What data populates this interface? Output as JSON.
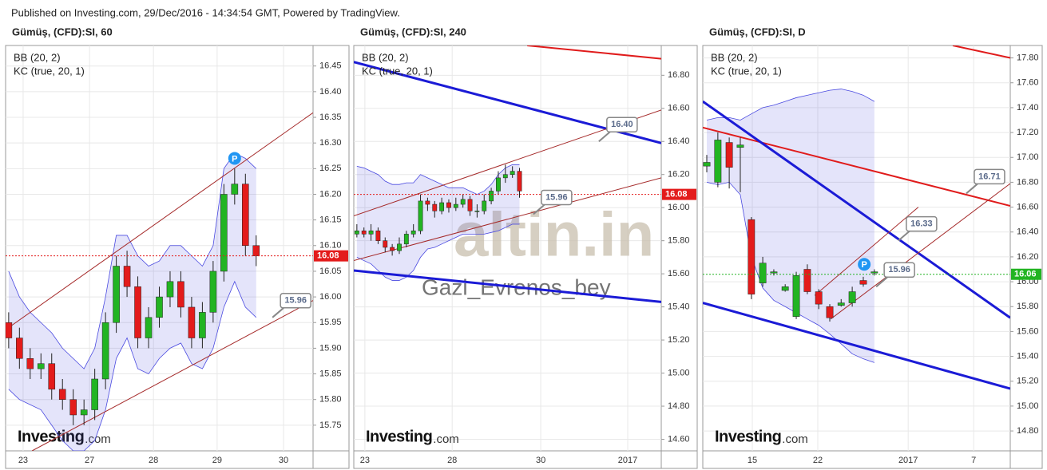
{
  "header": "Published on Investing.com, 29/Dec/2016 - 14:34:54 GMT, Powered by TradingView.",
  "chart_data": [
    {
      "type": "candlestick",
      "title": "Gümüş, (CFD):SI, 60",
      "indicators": [
        "BB (20, 2)",
        "KC (true, 20, 1)"
      ],
      "watermarks": [
        "Investing",
        ".com"
      ],
      "xlim": [
        0,
        100
      ],
      "ylim": [
        15.7,
        16.49
      ],
      "grid": true,
      "xticks": [
        {
          "value": 5.7,
          "label": "23"
        },
        {
          "value": 27.3,
          "label": "27"
        },
        {
          "value": 48.1,
          "label": "28"
        },
        {
          "value": 68.8,
          "label": "29"
        },
        {
          "value": 90.4,
          "label": "30"
        }
      ],
      "yticks": [
        15.75,
        {
          "value": 15.8,
          "label": "15.80"
        },
        15.85,
        {
          "value": 15.9,
          "label": "15.90"
        },
        15.95,
        {
          "value": 16,
          "label": "16.00"
        },
        16.05,
        {
          "value": 16.1,
          "label": "16.10"
        },
        16.15,
        {
          "value": 16.2,
          "label": "16.20"
        },
        16.25,
        {
          "value": 16.3,
          "label": "16.30"
        },
        16.35,
        {
          "value": 16.4,
          "label": "16.40"
        },
        16.45
      ],
      "up_color": "#22b422",
      "down_color": "#e31b1b",
      "band_color": "#4a4ae0",
      "x": [
        1,
        4.5,
        8,
        11.5,
        15,
        18.5,
        22,
        25.5,
        29,
        32.5,
        36,
        39.5,
        43,
        46.5,
        50,
        53.5,
        57,
        60.5,
        64,
        67.5,
        71,
        74.5,
        78,
        81.5
      ],
      "open": [
        15.95,
        15.92,
        15.88,
        15.86,
        15.87,
        15.82,
        15.8,
        15.77,
        15.78,
        15.84,
        15.95,
        16.06,
        16.02,
        15.92,
        15.96,
        16.0,
        16.03,
        15.98,
        15.92,
        15.97,
        16.05,
        16.2,
        16.22,
        16.1
      ],
      "high": [
        15.97,
        15.94,
        15.9,
        15.89,
        15.89,
        15.84,
        15.82,
        15.8,
        15.86,
        15.97,
        16.08,
        16.09,
        16.04,
        15.98,
        16.02,
        16.05,
        16.05,
        16.0,
        15.99,
        16.07,
        16.22,
        16.25,
        16.24,
        16.12
      ],
      "low": [
        15.9,
        15.86,
        15.84,
        15.84,
        15.8,
        15.78,
        15.75,
        15.75,
        15.76,
        15.82,
        15.93,
        16.0,
        15.9,
        15.9,
        15.94,
        15.98,
        15.96,
        15.9,
        15.9,
        15.95,
        16.03,
        16.18,
        16.08,
        16.06
      ],
      "close": [
        15.92,
        15.88,
        15.86,
        15.87,
        15.82,
        15.8,
        15.77,
        15.78,
        15.84,
        15.95,
        16.06,
        16.02,
        15.92,
        15.96,
        16.0,
        16.03,
        15.98,
        15.92,
        15.97,
        16.05,
        16.2,
        16.22,
        16.1,
        16.08
      ],
      "band_upper": [
        16.05,
        16.0,
        15.97,
        15.95,
        15.93,
        15.9,
        15.88,
        15.86,
        15.9,
        16.0,
        16.12,
        16.12,
        16.08,
        16.06,
        16.07,
        16.1,
        16.1,
        16.08,
        16.06,
        16.1,
        16.25,
        16.28,
        16.27,
        16.25
      ],
      "band_lower": [
        15.82,
        15.8,
        15.79,
        15.78,
        15.75,
        15.72,
        15.7,
        15.7,
        15.72,
        15.78,
        15.88,
        15.92,
        15.86,
        15.85,
        15.88,
        15.9,
        15.91,
        15.87,
        15.86,
        15.9,
        15.98,
        16.03,
        15.98,
        15.96
      ],
      "lines": [
        {
          "color": "#a52a2a",
          "width": 1,
          "x": [
            0,
            100
          ],
          "values": [
            15.936,
            16.359
          ]
        },
        {
          "color": "#a52a2a",
          "width": 1,
          "x": [
            8.6,
            100
          ],
          "values": [
            15.7,
            15.993
          ]
        }
      ],
      "price_line": {
        "value": 16.08,
        "color": "#e31b1b"
      },
      "callouts": [
        {
          "value": 15.96,
          "x": 86.8
        }
      ],
      "markers": [
        {
          "label": "P",
          "x": 74.5,
          "y": 16.27
        }
      ]
    },
    {
      "type": "candlestick",
      "title": "Gümüş, (CFD):SI, 240",
      "indicators": [
        "BB (20, 2)",
        "KC (true, 20, 1)"
      ],
      "watermarks": [
        "Investing",
        ".com",
        "altin.in",
        "Gazi_Evrenos_bey"
      ],
      "xlim": [
        0,
        100
      ],
      "ylim": [
        14.53,
        16.98
      ],
      "grid": true,
      "xticks": [
        {
          "value": 3.6,
          "label": "23"
        },
        {
          "value": 32,
          "label": "28"
        },
        {
          "value": 60.8,
          "label": "30"
        },
        {
          "value": 89.1,
          "label": "2017"
        }
      ],
      "yticks": [
        {
          "value": 14.6,
          "label": "14.60"
        },
        {
          "value": 14.8,
          "label": "14.80"
        },
        {
          "value": 15,
          "label": "15.00"
        },
        {
          "value": 15.2,
          "label": "15.20"
        },
        {
          "value": 15.4,
          "label": "15.40"
        },
        {
          "value": 15.6,
          "label": "15.60"
        },
        {
          "value": 15.8,
          "label": "15.80"
        },
        {
          "value": 16,
          "label": "16.00"
        },
        {
          "value": 16.2,
          "label": "16.20"
        },
        {
          "value": 16.4,
          "label": "16.40"
        },
        {
          "value": 16.6,
          "label": "16.60"
        },
        {
          "value": 16.8,
          "label": "16.80"
        }
      ],
      "up_color": "#22b422",
      "down_color": "#e31b1b",
      "band_color": "#4a4ae0",
      "x": [
        1,
        3.3,
        5.6,
        7.9,
        10.2,
        12.5,
        14.8,
        17.1,
        19.4,
        21.7,
        24,
        26.3,
        28.6,
        30.9,
        33.2,
        35.5,
        37.8,
        40.1,
        42.4,
        44.7,
        47,
        49.3,
        51.6,
        53.9
      ],
      "open": [
        15.84,
        15.86,
        15.84,
        15.86,
        15.8,
        15.76,
        15.74,
        15.78,
        15.84,
        15.86,
        16.04,
        16.02,
        15.98,
        16.03,
        16.0,
        16.02,
        16.05,
        15.98,
        15.98,
        16.04,
        16.1,
        16.18,
        16.2,
        16.22
      ],
      "high": [
        15.9,
        15.88,
        15.9,
        15.88,
        15.82,
        15.78,
        15.82,
        15.86,
        15.9,
        16.08,
        16.06,
        16.04,
        16.06,
        16.05,
        16.06,
        16.08,
        16.07,
        16.02,
        16.08,
        16.12,
        16.22,
        16.26,
        16.25,
        16.24
      ],
      "low": [
        15.82,
        15.82,
        15.8,
        15.78,
        15.73,
        15.71,
        15.72,
        15.76,
        15.82,
        15.84,
        15.98,
        15.94,
        15.96,
        15.97,
        15.98,
        16.0,
        15.95,
        15.94,
        15.96,
        16.02,
        16.08,
        16.15,
        16.18,
        16.06
      ],
      "close": [
        15.86,
        15.84,
        15.86,
        15.8,
        15.76,
        15.74,
        15.78,
        15.84,
        15.86,
        16.04,
        16.02,
        15.98,
        16.03,
        16.0,
        16.02,
        16.05,
        15.98,
        15.98,
        16.04,
        16.1,
        16.18,
        16.2,
        16.22,
        16.1
      ],
      "band_upper": [
        16.25,
        16.24,
        16.22,
        16.2,
        16.16,
        16.14,
        16.14,
        16.15,
        16.15,
        16.2,
        16.18,
        16.16,
        16.14,
        16.12,
        16.12,
        16.12,
        16.1,
        16.08,
        16.1,
        16.14,
        16.2,
        16.24,
        16.26,
        16.26
      ],
      "band_lower": [
        15.7,
        15.68,
        15.66,
        15.62,
        15.58,
        15.56,
        15.56,
        15.58,
        15.62,
        15.7,
        15.75,
        15.76,
        15.78,
        15.8,
        15.82,
        15.84,
        15.84,
        15.84,
        15.84,
        15.85,
        15.86,
        15.88,
        15.9,
        15.9
      ],
      "lines": [
        {
          "color": "#e01b1b",
          "width": 2,
          "x": [
            56.4,
            100
          ],
          "values": [
            16.98,
            16.9
          ]
        },
        {
          "color": "#1b1bd6",
          "width": 3,
          "x": [
            0,
            100
          ],
          "values": [
            16.88,
            16.39
          ]
        },
        {
          "color": "#1b1bd6",
          "width": 3,
          "x": [
            0,
            100
          ],
          "values": [
            15.62,
            15.43
          ]
        },
        {
          "color": "#a52a2a",
          "width": 1,
          "x": [
            0,
            100
          ],
          "values": [
            15.95,
            16.59
          ]
        },
        {
          "color": "#a52a2a",
          "width": 1,
          "x": [
            0,
            100
          ],
          "values": [
            15.68,
            16.18
          ]
        }
      ],
      "price_line": {
        "value": 16.08,
        "color": "#e31b1b"
      },
      "callouts": [
        {
          "value": 16.4,
          "label": "16.40",
          "x": 79.7
        },
        {
          "value": 15.96,
          "x": 58.4
        }
      ],
      "markers": []
    },
    {
      "type": "candlestick",
      "title": "Gümüş, (CFD):SI, D",
      "indicators": [
        "BB (20, 2)",
        "KC (true, 20, 1)"
      ],
      "watermarks": [
        "Investing",
        ".com"
      ],
      "xlim": [
        0,
        100
      ],
      "ylim": [
        14.64,
        17.9
      ],
      "grid": true,
      "xticks": [
        {
          "value": 16.1,
          "label": "15"
        },
        {
          "value": 37.4,
          "label": "22"
        },
        {
          "value": 66.8,
          "label": "2017"
        },
        {
          "value": 88.1,
          "label": "7"
        }
      ],
      "yticks": [
        {
          "value": 14.8,
          "label": "14.80"
        },
        {
          "value": 15,
          "label": "15.00"
        },
        {
          "value": 15.2,
          "label": "15.20"
        },
        {
          "value": 15.4,
          "label": "15.40"
        },
        {
          "value": 15.6,
          "label": "15.60"
        },
        {
          "value": 15.8,
          "label": "15.80"
        },
        {
          "value": 16,
          "label": "16.00"
        },
        {
          "value": 16.2,
          "label": "16.20"
        },
        {
          "value": 16.4,
          "label": "16.40"
        },
        {
          "value": 16.6,
          "label": "16.60"
        },
        {
          "value": 16.8,
          "label": "16.80"
        },
        {
          "value": 17,
          "label": "17.00"
        },
        {
          "value": 17.2,
          "label": "17.20"
        },
        {
          "value": 17.4,
          "label": "17.40"
        },
        {
          "value": 17.6,
          "label": "17.60"
        },
        {
          "value": 17.8,
          "label": "17.80"
        }
      ],
      "up_color": "#22b422",
      "down_color": "#e31b1b",
      "band_color": "#4a4ae0",
      "x": [
        1.3,
        4.9,
        8.6,
        12.2,
        15.8,
        19.5,
        23.1,
        26.8,
        30.4,
        34.0,
        37.7,
        41.3,
        45.0,
        48.6,
        52.2,
        55.8
      ],
      "open": [
        16.93,
        16.8,
        17.12,
        17.08,
        16.5,
        15.99,
        16.07,
        15.93,
        15.72,
        16.1,
        15.92,
        15.8,
        15.81,
        15.83,
        16.01,
        16.07
      ],
      "high": [
        17.02,
        17.2,
        17.16,
        17.16,
        16.52,
        16.2,
        16.1,
        15.98,
        16.08,
        16.14,
        15.94,
        15.82,
        15.86,
        15.96,
        16.04,
        16.1
      ],
      "low": [
        16.88,
        16.76,
        16.75,
        16.72,
        15.86,
        15.96,
        16.05,
        15.92,
        15.7,
        15.9,
        15.78,
        15.68,
        15.8,
        15.8,
        15.96,
        16.05
      ],
      "close": [
        16.96,
        17.14,
        16.92,
        17.1,
        15.9,
        16.15,
        16.08,
        15.96,
        16.05,
        15.92,
        15.82,
        15.71,
        15.83,
        15.92,
        15.98,
        16.08
      ],
      "band_upper": [
        17.3,
        17.32,
        17.32,
        17.3,
        17.35,
        17.4,
        17.42,
        17.45,
        17.48,
        17.5,
        17.52,
        17.54,
        17.55,
        17.53,
        17.5,
        17.45
      ],
      "band_lower": [
        16.8,
        16.78,
        16.8,
        16.7,
        16.2,
        15.95,
        15.85,
        15.8,
        15.75,
        15.7,
        15.65,
        15.58,
        15.5,
        15.42,
        15.38,
        15.35
      ],
      "lines": [
        {
          "color": "#e01b1b",
          "width": 2,
          "x": [
            81.3,
            100
          ],
          "values": [
            17.9,
            17.8
          ]
        },
        {
          "color": "#e01b1b",
          "width": 2,
          "x": [
            0,
            100
          ],
          "values": [
            17.24,
            16.61
          ]
        },
        {
          "color": "#1b1bd6",
          "width": 3,
          "x": [
            0,
            100
          ],
          "values": [
            17.45,
            15.71
          ]
        },
        {
          "color": "#1b1bd6",
          "width": 3,
          "x": [
            0,
            100
          ],
          "values": [
            15.83,
            15.14
          ]
        },
        {
          "color": "#a52a2a",
          "width": 1,
          "x": [
            41.6,
            100
          ],
          "values": [
            15.7,
            16.79
          ]
        },
        {
          "color": "#a52a2a",
          "width": 1,
          "x": [
            36.4,
            70.1
          ],
          "values": [
            15.89,
            16.6
          ]
        }
      ],
      "price_line": {
        "value": 16.06,
        "color": "#22b422"
      },
      "callouts": [
        {
          "value": 16.71,
          "x": 85.7
        },
        {
          "value": 16.33,
          "x": 63.6
        },
        {
          "value": 15.96,
          "x": 56.4
        }
      ],
      "markers": [
        {
          "label": "P",
          "x": 52.5,
          "y": 16.14
        }
      ]
    }
  ]
}
